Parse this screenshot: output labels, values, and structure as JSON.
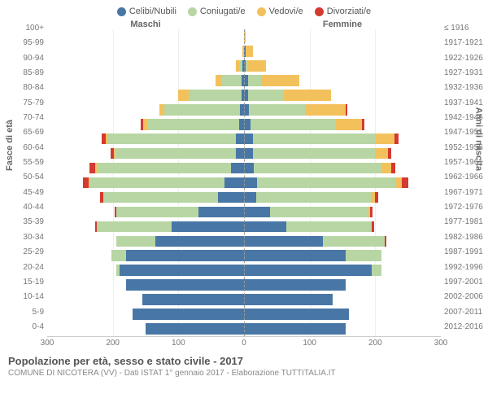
{
  "legend": {
    "items": [
      {
        "label": "Celibi/Nubili",
        "color": "#4877a6"
      },
      {
        "label": "Coniugati/e",
        "color": "#b8d6a3"
      },
      {
        "label": "Vedovi/e",
        "color": "#f3c15c"
      },
      {
        "label": "Divorziati/e",
        "color": "#d43a2f"
      }
    ]
  },
  "headers": {
    "left": "Maschi",
    "right": "Femmine"
  },
  "axis_titles": {
    "left": "Fasce di età",
    "right": "Anni di nascita"
  },
  "chart": {
    "type": "population-pyramid",
    "x_max": 300,
    "x_ticks": [
      300,
      200,
      100,
      0,
      100,
      200,
      300
    ],
    "background_color": "#ffffff",
    "grid_color": "#eeeeee",
    "center_line_color": "#999999",
    "bar_height_ratio": 0.76,
    "age_groups": [
      "100+",
      "95-99",
      "90-94",
      "85-89",
      "80-84",
      "75-79",
      "70-74",
      "65-69",
      "60-64",
      "55-59",
      "50-54",
      "45-49",
      "40-44",
      "35-39",
      "30-34",
      "25-29",
      "20-24",
      "15-19",
      "10-14",
      "5-9",
      "0-4"
    ],
    "birth_years": [
      "≤ 1916",
      "1917-1921",
      "1922-1926",
      "1927-1931",
      "1932-1936",
      "1937-1941",
      "1942-1946",
      "1947-1951",
      "1952-1956",
      "1957-1961",
      "1962-1966",
      "1967-1971",
      "1972-1976",
      "1977-1981",
      "1982-1986",
      "1987-1991",
      "1992-1996",
      "1997-2001",
      "2002-2006",
      "2007-2011",
      "2012-2016"
    ],
    "series_colors": {
      "celibi": "#4877a6",
      "coniugati": "#b8d6a3",
      "vedovi": "#f3c15c",
      "divorziati": "#d43a2f"
    },
    "rows": [
      {
        "m": {
          "celibi": 0,
          "coniugati": 0,
          "vedovi": 0,
          "divorziati": 0
        },
        "f": {
          "celibi": 0,
          "coniugati": 0,
          "vedovi": 2,
          "divorziati": 0
        }
      },
      {
        "m": {
          "celibi": 0,
          "coniugati": 0,
          "vedovi": 2,
          "divorziati": 0
        },
        "f": {
          "celibi": 2,
          "coniugati": 0,
          "vedovi": 12,
          "divorziati": 0
        }
      },
      {
        "m": {
          "celibi": 2,
          "coniugati": 5,
          "vedovi": 6,
          "divorziati": 0
        },
        "f": {
          "celibi": 3,
          "coniugati": 3,
          "vedovi": 28,
          "divorziati": 0
        }
      },
      {
        "m": {
          "celibi": 4,
          "coniugati": 30,
          "vedovi": 10,
          "divorziati": 0
        },
        "f": {
          "celibi": 6,
          "coniugati": 20,
          "vedovi": 58,
          "divorziati": 0
        }
      },
      {
        "m": {
          "celibi": 4,
          "coniugati": 80,
          "vedovi": 16,
          "divorziati": 0
        },
        "f": {
          "celibi": 6,
          "coniugati": 55,
          "vedovi": 72,
          "divorziati": 0
        }
      },
      {
        "m": {
          "celibi": 6,
          "coniugati": 115,
          "vedovi": 8,
          "divorziati": 0
        },
        "f": {
          "celibi": 8,
          "coniugati": 85,
          "vedovi": 62,
          "divorziati": 2
        }
      },
      {
        "m": {
          "celibi": 8,
          "coniugati": 140,
          "vedovi": 6,
          "divorziati": 4
        },
        "f": {
          "celibi": 10,
          "coniugati": 130,
          "vedovi": 40,
          "divorziati": 4
        }
      },
      {
        "m": {
          "celibi": 12,
          "coniugati": 195,
          "vedovi": 4,
          "divorziati": 6
        },
        "f": {
          "celibi": 14,
          "coniugati": 185,
          "vedovi": 30,
          "divorziati": 6
        }
      },
      {
        "m": {
          "celibi": 12,
          "coniugati": 185,
          "vedovi": 2,
          "divorziati": 4
        },
        "f": {
          "celibi": 14,
          "coniugati": 185,
          "vedovi": 20,
          "divorziati": 6
        }
      },
      {
        "m": {
          "celibi": 20,
          "coniugati": 205,
          "vedovi": 2,
          "divorziati": 8
        },
        "f": {
          "celibi": 15,
          "coniugati": 195,
          "vedovi": 15,
          "divorziati": 6
        }
      },
      {
        "m": {
          "celibi": 30,
          "coniugati": 205,
          "vedovi": 2,
          "divorziati": 8
        },
        "f": {
          "celibi": 20,
          "coniugati": 210,
          "vedovi": 10,
          "divorziati": 10
        }
      },
      {
        "m": {
          "celibi": 40,
          "coniugati": 175,
          "vedovi": 0,
          "divorziati": 4
        },
        "f": {
          "celibi": 18,
          "coniugati": 175,
          "vedovi": 6,
          "divorziati": 6
        }
      },
      {
        "m": {
          "celibi": 70,
          "coniugati": 125,
          "vedovi": 0,
          "divorziati": 2
        },
        "f": {
          "celibi": 40,
          "coniugati": 150,
          "vedovi": 2,
          "divorziati": 4
        }
      },
      {
        "m": {
          "celibi": 110,
          "coniugati": 115,
          "vedovi": 0,
          "divorziati": 2
        },
        "f": {
          "celibi": 65,
          "coniugati": 130,
          "vedovi": 0,
          "divorziati": 3
        }
      },
      {
        "m": {
          "celibi": 135,
          "coniugati": 60,
          "vedovi": 0,
          "divorziati": 0
        },
        "f": {
          "celibi": 120,
          "coniugati": 95,
          "vedovi": 0,
          "divorziati": 2
        }
      },
      {
        "m": {
          "celibi": 180,
          "coniugati": 22,
          "vedovi": 0,
          "divorziati": 0
        },
        "f": {
          "celibi": 155,
          "coniugati": 55,
          "vedovi": 0,
          "divorziati": 0
        }
      },
      {
        "m": {
          "celibi": 190,
          "coniugati": 5,
          "vedovi": 0,
          "divorziati": 0
        },
        "f": {
          "celibi": 195,
          "coniugati": 15,
          "vedovi": 0,
          "divorziati": 0
        }
      },
      {
        "m": {
          "celibi": 180,
          "coniugati": 0,
          "vedovi": 0,
          "divorziati": 0
        },
        "f": {
          "celibi": 155,
          "coniugati": 0,
          "vedovi": 0,
          "divorziati": 0
        }
      },
      {
        "m": {
          "celibi": 155,
          "coniugati": 0,
          "vedovi": 0,
          "divorziati": 0
        },
        "f": {
          "celibi": 135,
          "coniugati": 0,
          "vedovi": 0,
          "divorziati": 0
        }
      },
      {
        "m": {
          "celibi": 170,
          "coniugati": 0,
          "vedovi": 0,
          "divorziati": 0
        },
        "f": {
          "celibi": 160,
          "coniugati": 0,
          "vedovi": 0,
          "divorziati": 0
        }
      },
      {
        "m": {
          "celibi": 150,
          "coniugati": 0,
          "vedovi": 0,
          "divorziati": 0
        },
        "f": {
          "celibi": 155,
          "coniugati": 0,
          "vedovi": 0,
          "divorziati": 0
        }
      }
    ]
  },
  "footer": {
    "title": "Popolazione per età, sesso e stato civile - 2017",
    "subtitle": "COMUNE DI NICOTERA (VV) - Dati ISTAT 1° gennaio 2017 - Elaborazione TUTTITALIA.IT"
  }
}
